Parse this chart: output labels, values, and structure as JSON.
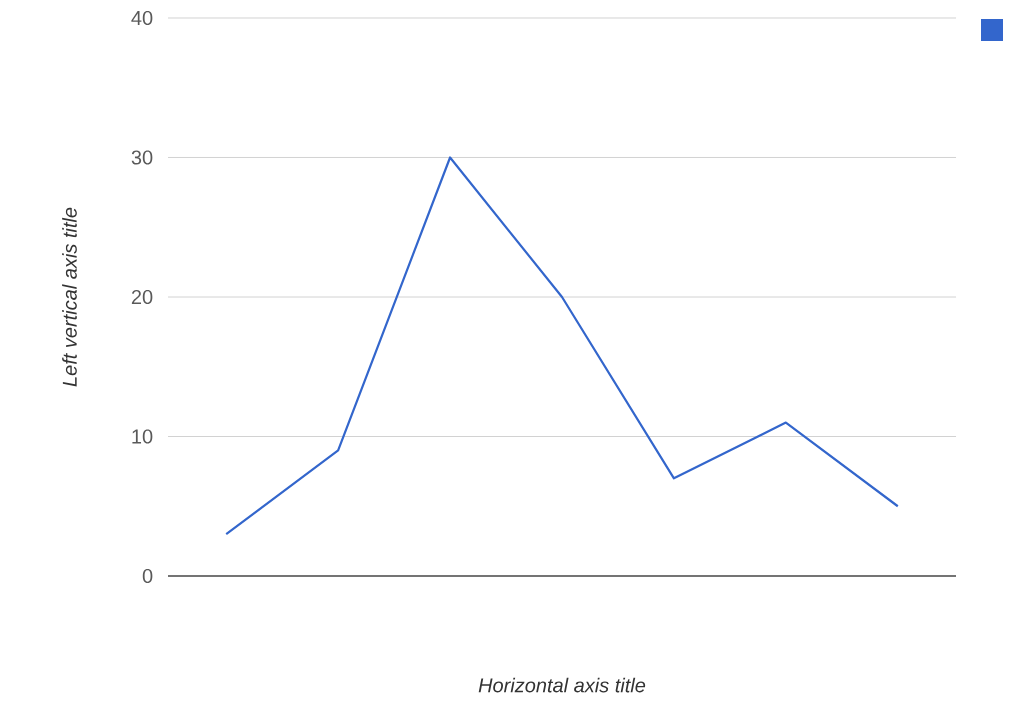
{
  "chart_data": {
    "type": "line",
    "xlabel": "Horizontal axis title",
    "ylabel": "Left vertical axis title",
    "categories": [
      null,
      null,
      null,
      null,
      null,
      null,
      null
    ],
    "series": [
      {
        "color": "#3366cc",
        "values": [
          3,
          9,
          30,
          20,
          7,
          11,
          5
        ]
      }
    ],
    "ylim": [
      0,
      40
    ],
    "yticks": [
      0,
      10,
      20,
      30,
      40
    ],
    "grid": "y",
    "marker": "none"
  }
}
